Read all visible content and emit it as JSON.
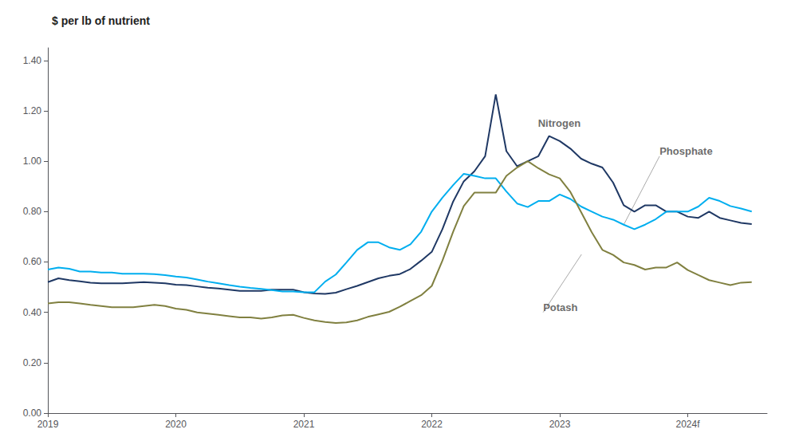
{
  "chart_data": {
    "type": "line",
    "title": "$ per lb of nutrient",
    "x": [
      2019.0,
      2019.083,
      2019.167,
      2019.25,
      2019.333,
      2019.417,
      2019.5,
      2019.583,
      2019.667,
      2019.75,
      2019.833,
      2019.917,
      2020.0,
      2020.083,
      2020.167,
      2020.25,
      2020.333,
      2020.417,
      2020.5,
      2020.583,
      2020.667,
      2020.75,
      2020.833,
      2020.917,
      2021.0,
      2021.083,
      2021.167,
      2021.25,
      2021.333,
      2021.417,
      2021.5,
      2021.583,
      2021.667,
      2021.75,
      2021.833,
      2021.917,
      2022.0,
      2022.083,
      2022.167,
      2022.25,
      2022.333,
      2022.417,
      2022.5,
      2022.583,
      2022.667,
      2022.75,
      2022.833,
      2022.917,
      2023.0,
      2023.083,
      2023.167,
      2023.25,
      2023.333,
      2023.417,
      2023.5,
      2023.583,
      2023.667,
      2023.75,
      2023.833,
      2023.917,
      2024.0,
      2024.083,
      2024.167,
      2024.25,
      2024.333,
      2024.417,
      2024.5
    ],
    "series": [
      {
        "name": "Nitrogen",
        "color": "#1f3864",
        "values": [
          0.52,
          0.535,
          0.528,
          0.523,
          0.518,
          0.515,
          0.515,
          0.515,
          0.518,
          0.52,
          0.518,
          0.515,
          0.51,
          0.508,
          0.503,
          0.498,
          0.495,
          0.49,
          0.485,
          0.485,
          0.485,
          0.49,
          0.49,
          0.49,
          0.48,
          0.475,
          0.473,
          0.478,
          0.492,
          0.505,
          0.52,
          0.535,
          0.545,
          0.552,
          0.572,
          0.605,
          0.64,
          0.73,
          0.84,
          0.92,
          0.96,
          1.02,
          1.265,
          1.04,
          0.98,
          1.0,
          1.02,
          1.1,
          1.08,
          1.05,
          1.01,
          0.99,
          0.975,
          0.915,
          0.825,
          0.8,
          0.825,
          0.825,
          0.8,
          0.8,
          0.78,
          0.775,
          0.8,
          0.775,
          0.765,
          0.755,
          0.75
        ]
      },
      {
        "name": "Phosphate",
        "color": "#00aeef",
        "values": [
          0.57,
          0.578,
          0.573,
          0.562,
          0.562,
          0.558,
          0.558,
          0.553,
          0.553,
          0.553,
          0.552,
          0.548,
          0.542,
          0.538,
          0.53,
          0.522,
          0.515,
          0.508,
          0.502,
          0.497,
          0.493,
          0.488,
          0.483,
          0.483,
          0.48,
          0.48,
          0.522,
          0.55,
          0.598,
          0.648,
          0.678,
          0.678,
          0.658,
          0.648,
          0.67,
          0.72,
          0.8,
          0.855,
          0.905,
          0.95,
          0.942,
          0.932,
          0.932,
          0.88,
          0.832,
          0.818,
          0.842,
          0.842,
          0.868,
          0.85,
          0.82,
          0.8,
          0.78,
          0.768,
          0.748,
          0.73,
          0.748,
          0.77,
          0.8,
          0.8,
          0.8,
          0.82,
          0.855,
          0.842,
          0.822,
          0.812,
          0.8
        ]
      },
      {
        "name": "Potash",
        "color": "#808040",
        "values": [
          0.435,
          0.44,
          0.44,
          0.435,
          0.43,
          0.425,
          0.42,
          0.42,
          0.42,
          0.425,
          0.43,
          0.425,
          0.415,
          0.41,
          0.4,
          0.395,
          0.39,
          0.385,
          0.38,
          0.38,
          0.375,
          0.38,
          0.388,
          0.39,
          0.378,
          0.368,
          0.362,
          0.358,
          0.36,
          0.368,
          0.382,
          0.392,
          0.402,
          0.422,
          0.445,
          0.468,
          0.505,
          0.605,
          0.72,
          0.822,
          0.875,
          0.875,
          0.875,
          0.942,
          0.975,
          1.0,
          0.972,
          0.948,
          0.932,
          0.878,
          0.798,
          0.718,
          0.648,
          0.628,
          0.598,
          0.588,
          0.57,
          0.578,
          0.578,
          0.598,
          0.568,
          0.548,
          0.528,
          0.518,
          0.508,
          0.518,
          0.52
        ]
      }
    ],
    "xlim": [
      2019.0,
      2024.62
    ],
    "xticks": [
      2019,
      2020,
      2021,
      2022,
      2023,
      {
        "value": 2024,
        "label": "2024f"
      }
    ],
    "ylim": [
      0.0,
      1.45
    ],
    "yticks": [
      {
        "value": 0.0,
        "label": "0.00"
      },
      {
        "value": 0.2,
        "label": "0.20"
      },
      {
        "value": 0.4,
        "label": "0.40"
      },
      {
        "value": 0.6,
        "label": "0.60"
      },
      {
        "value": 0.8,
        "label": "0.80"
      },
      {
        "value": 1.0,
        "label": "1.00"
      },
      {
        "value": 1.2,
        "label": "1.20"
      },
      {
        "value": 1.4,
        "label": "1.40"
      }
    ],
    "grid": false,
    "annotations": [
      {
        "text": "Nitrogen",
        "x": 2022.67,
        "y": 1.1,
        "text_x": 2022.83,
        "text_y": 1.13,
        "line_style": "none"
      },
      {
        "text": "Phosphate",
        "x": 2023.5,
        "y": 0.748,
        "text_x": 2023.78,
        "text_y": 1.02,
        "line_style": "solid"
      },
      {
        "text": "Potash",
        "x": 2023.17,
        "y": 0.63,
        "text_x": 2022.87,
        "text_y": 0.4,
        "line_style": "solid"
      }
    ]
  }
}
